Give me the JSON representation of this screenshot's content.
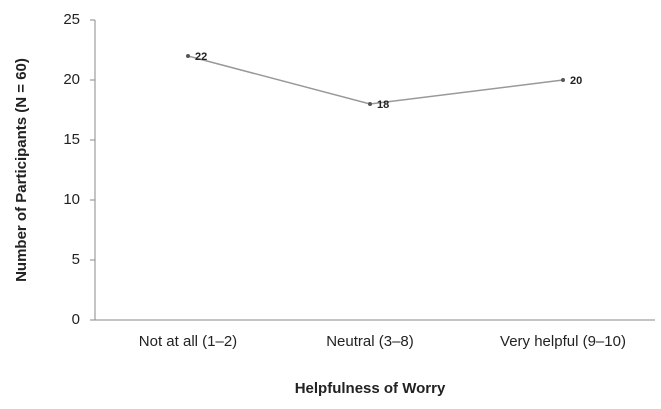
{
  "chart_data": {
    "type": "line",
    "x_label": "Helpfulness of Worry",
    "y_label": "Number of Participants (N = 60)",
    "categories": [
      "Not at all (1–2)",
      "Neutral (3–8)",
      "Very helpful (9–10)"
    ],
    "values": [
      22,
      18,
      20
    ],
    "color": "#999999",
    "ylim": [
      0,
      25
    ],
    "yticks": [
      0,
      5,
      10,
      15,
      20,
      25
    ],
    "grid": false
  }
}
